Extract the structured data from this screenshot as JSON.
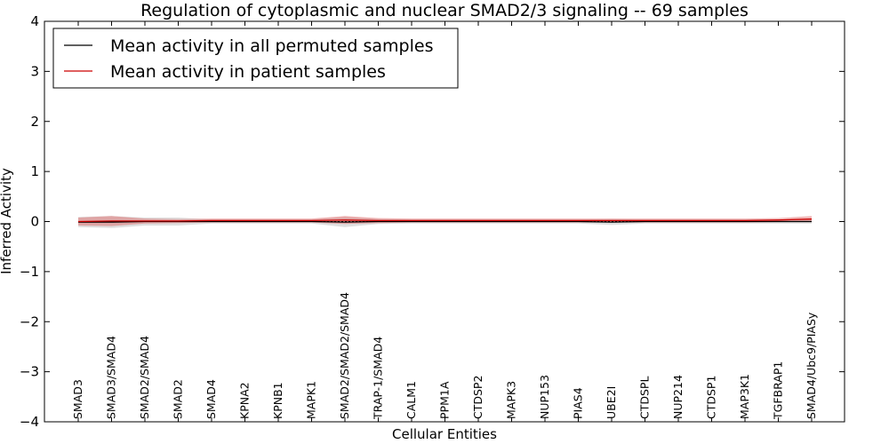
{
  "chart_data": {
    "type": "line",
    "title": "Regulation of cytoplasmic and nuclear SMAD2/3 signaling -- 69 samples",
    "xlabel": "Cellular Entities",
    "ylabel": "Inferred Activity",
    "ylim": [
      -4,
      4
    ],
    "yticks": [
      4,
      3,
      2,
      1,
      0,
      -1,
      -2,
      -3,
      -4
    ],
    "ytick_labels": [
      "4",
      "3",
      "2",
      "1",
      "0",
      "−1",
      "−2",
      "−3",
      "−4"
    ],
    "grid": false,
    "legend_position": "top-left",
    "categories": [
      "SMAD3",
      "SMAD3/SMAD4",
      "SMAD2/SMAD4",
      "SMAD2",
      "SMAD4",
      "KPNA2",
      "KPNB1",
      "MAPK1",
      "SMAD2/SMAD2/SMAD4",
      "TRAP-1/SMAD4",
      "CALM1",
      "PPM1A",
      "CTDSP2",
      "MAPK3",
      "NUP153",
      "PIAS4",
      "UBE2I",
      "CTDSPL",
      "NUP214",
      "CTDSP1",
      "MAP3K1",
      "TGFBRAP1",
      "SMAD4/Ubc9/PIASy"
    ],
    "series": [
      {
        "name": "Mean activity in all permuted samples",
        "color": "#000000",
        "values": [
          -0.01,
          -0.01,
          0.0,
          0.0,
          0.0,
          0.0,
          0.0,
          0.0,
          -0.01,
          0.0,
          0.0,
          0.0,
          0.0,
          0.0,
          0.0,
          0.0,
          -0.01,
          0.0,
          0.0,
          0.0,
          0.0,
          0.0,
          0.0
        ],
        "band": [
          0.1,
          0.12,
          0.08,
          0.08,
          0.04,
          0.04,
          0.04,
          0.04,
          0.1,
          0.05,
          0.04,
          0.04,
          0.04,
          0.04,
          0.04,
          0.04,
          0.06,
          0.04,
          0.04,
          0.04,
          0.04,
          0.04,
          0.04
        ]
      },
      {
        "name": "Mean activity in patient samples",
        "color": "#cc0000",
        "values": [
          0.0,
          0.01,
          0.01,
          0.01,
          0.02,
          0.02,
          0.02,
          0.02,
          0.03,
          0.02,
          0.02,
          0.02,
          0.02,
          0.02,
          0.02,
          0.02,
          0.02,
          0.02,
          0.02,
          0.02,
          0.02,
          0.03,
          0.05
        ],
        "band": [
          0.08,
          0.1,
          0.05,
          0.04,
          0.04,
          0.04,
          0.04,
          0.04,
          0.08,
          0.05,
          0.04,
          0.04,
          0.04,
          0.04,
          0.04,
          0.04,
          0.04,
          0.04,
          0.04,
          0.04,
          0.04,
          0.04,
          0.06
        ]
      }
    ]
  }
}
